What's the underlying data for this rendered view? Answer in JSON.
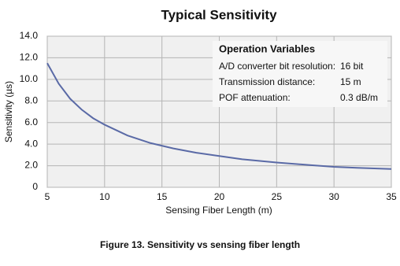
{
  "chart_data": {
    "type": "line",
    "title": "Typical Sensitivity",
    "x_label": "Sensing Fiber Length (m)",
    "y_label": "Sensitivity (µs)",
    "x": [
      5,
      6,
      7,
      8,
      9,
      10,
      12,
      14,
      16,
      18,
      20,
      22,
      25,
      28,
      30,
      32,
      35
    ],
    "series": [
      {
        "name": "Sensitivity",
        "color": "#5a6aa6",
        "values": [
          11.5,
          9.6,
          8.2,
          7.2,
          6.4,
          5.8,
          4.8,
          4.1,
          3.6,
          3.2,
          2.9,
          2.6,
          2.3,
          2.05,
          1.9,
          1.8,
          1.7
        ]
      }
    ],
    "xlim": [
      5,
      35
    ],
    "xticks": [
      5,
      10,
      15,
      20,
      25,
      30,
      35
    ],
    "ylim": [
      0,
      14
    ],
    "yticks": [
      0,
      {
        "value": 2,
        "label": "2.0"
      },
      {
        "value": 4,
        "label": "4.0"
      },
      {
        "value": 6,
        "label": "6.0"
      },
      {
        "value": 8,
        "label": "8.0"
      },
      {
        "value": 10,
        "label": "10.0"
      },
      {
        "value": 12,
        "label": "12.0"
      },
      {
        "value": 14,
        "label": "14.0"
      }
    ],
    "grid": true,
    "annotation": {
      "title": "Operation Variables",
      "rows": [
        [
          "A/D converter bit resolution:",
          "16 bit"
        ],
        [
          "Transmission distance:",
          "15 m"
        ],
        [
          "POF attenuation:",
          "0.3 dB/m"
        ]
      ]
    },
    "caption": "Figure 13. Sensitivity vs sensing fiber length"
  }
}
